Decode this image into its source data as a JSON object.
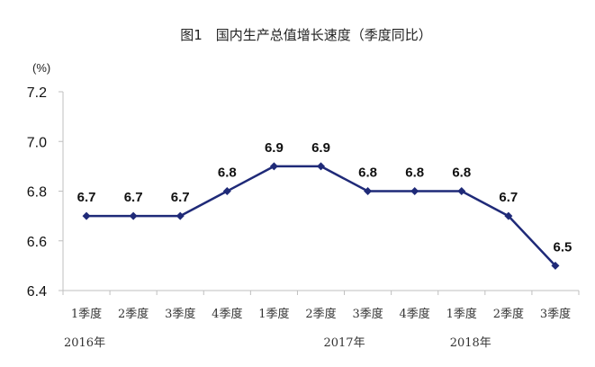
{
  "chart_data": {
    "type": "line",
    "title": "图1　国内生产总值增长速度（季度同比）",
    "unit_label": "(%)",
    "categories": [
      "1季度",
      "2季度",
      "3季度",
      "4季度",
      "1季度",
      "2季度",
      "3季度",
      "4季度",
      "1季度",
      "2季度",
      "3季度"
    ],
    "year_groups": [
      {
        "label": "2016年",
        "start": 0,
        "end": 3
      },
      {
        "label": "2017年",
        "start": 4,
        "end": 7
      },
      {
        "label": "2018年",
        "start": 8,
        "end": 10
      }
    ],
    "series": [
      {
        "values": [
          6.7,
          6.7,
          6.7,
          6.8,
          6.9,
          6.9,
          6.8,
          6.8,
          6.8,
          6.7,
          6.5
        ],
        "color": "#1f2a78"
      }
    ],
    "data_labels": [
      "6.7",
      "6.7",
      "6.7",
      "6.8",
      "6.9",
      "6.9",
      "6.8",
      "6.8",
      "6.8",
      "6.7",
      "6.5"
    ],
    "ylim": [
      6.4,
      7.2
    ],
    "yticks": [
      6.4,
      6.6,
      6.8,
      7.0,
      7.2
    ],
    "ytick_labels": [
      "6.4",
      "6.6",
      "6.8",
      "7.0",
      "7.2"
    ],
    "grid": false,
    "legend": "none",
    "axis_color": "#bfbfbf",
    "marker": "diamond"
  }
}
